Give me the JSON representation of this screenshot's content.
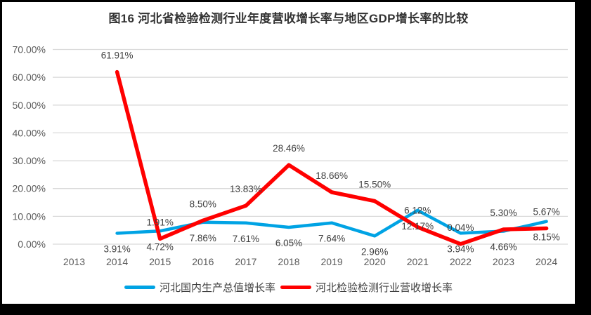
{
  "chart_data": {
    "type": "line",
    "title": "图16 河北省检验检测行业年度营收增长率与地区GDP增长率的比较",
    "categories": [
      2013,
      2014,
      2015,
      2016,
      2017,
      2018,
      2019,
      2020,
      2021,
      2022,
      2023,
      2024
    ],
    "series": [
      {
        "name": "河北国内生产总值增长率",
        "color": "#00A3E4",
        "line_width": 4.5,
        "start_year": 2014,
        "label_position": "below",
        "values": [
          3.91,
          4.72,
          7.86,
          7.61,
          6.05,
          7.64,
          2.96,
          12.17,
          3.94,
          4.66,
          8.15
        ]
      },
      {
        "name": "河北检验检测行业营收增长率",
        "color": "#FF0000",
        "line_width": 5.5,
        "start_year": 2014,
        "label_position": "above",
        "values": [
          61.91,
          1.91,
          8.5,
          13.83,
          28.46,
          18.66,
          15.5,
          6.12,
          0.04,
          5.3,
          5.67
        ]
      }
    ],
    "ylim": [
      0,
      70
    ],
    "ytick_step": 10,
    "ytick_labels": [
      "0.00%",
      "10.00%",
      "20.00%",
      "30.00%",
      "40.00%",
      "50.00%",
      "60.00%",
      "70.00%"
    ],
    "grid": "horizontal",
    "grid_color": "#D9D9D9",
    "axis_color": "#595959",
    "label_color": "#3F3F3F",
    "legend_position": "bottom",
    "xlabel": "",
    "ylabel": ""
  }
}
